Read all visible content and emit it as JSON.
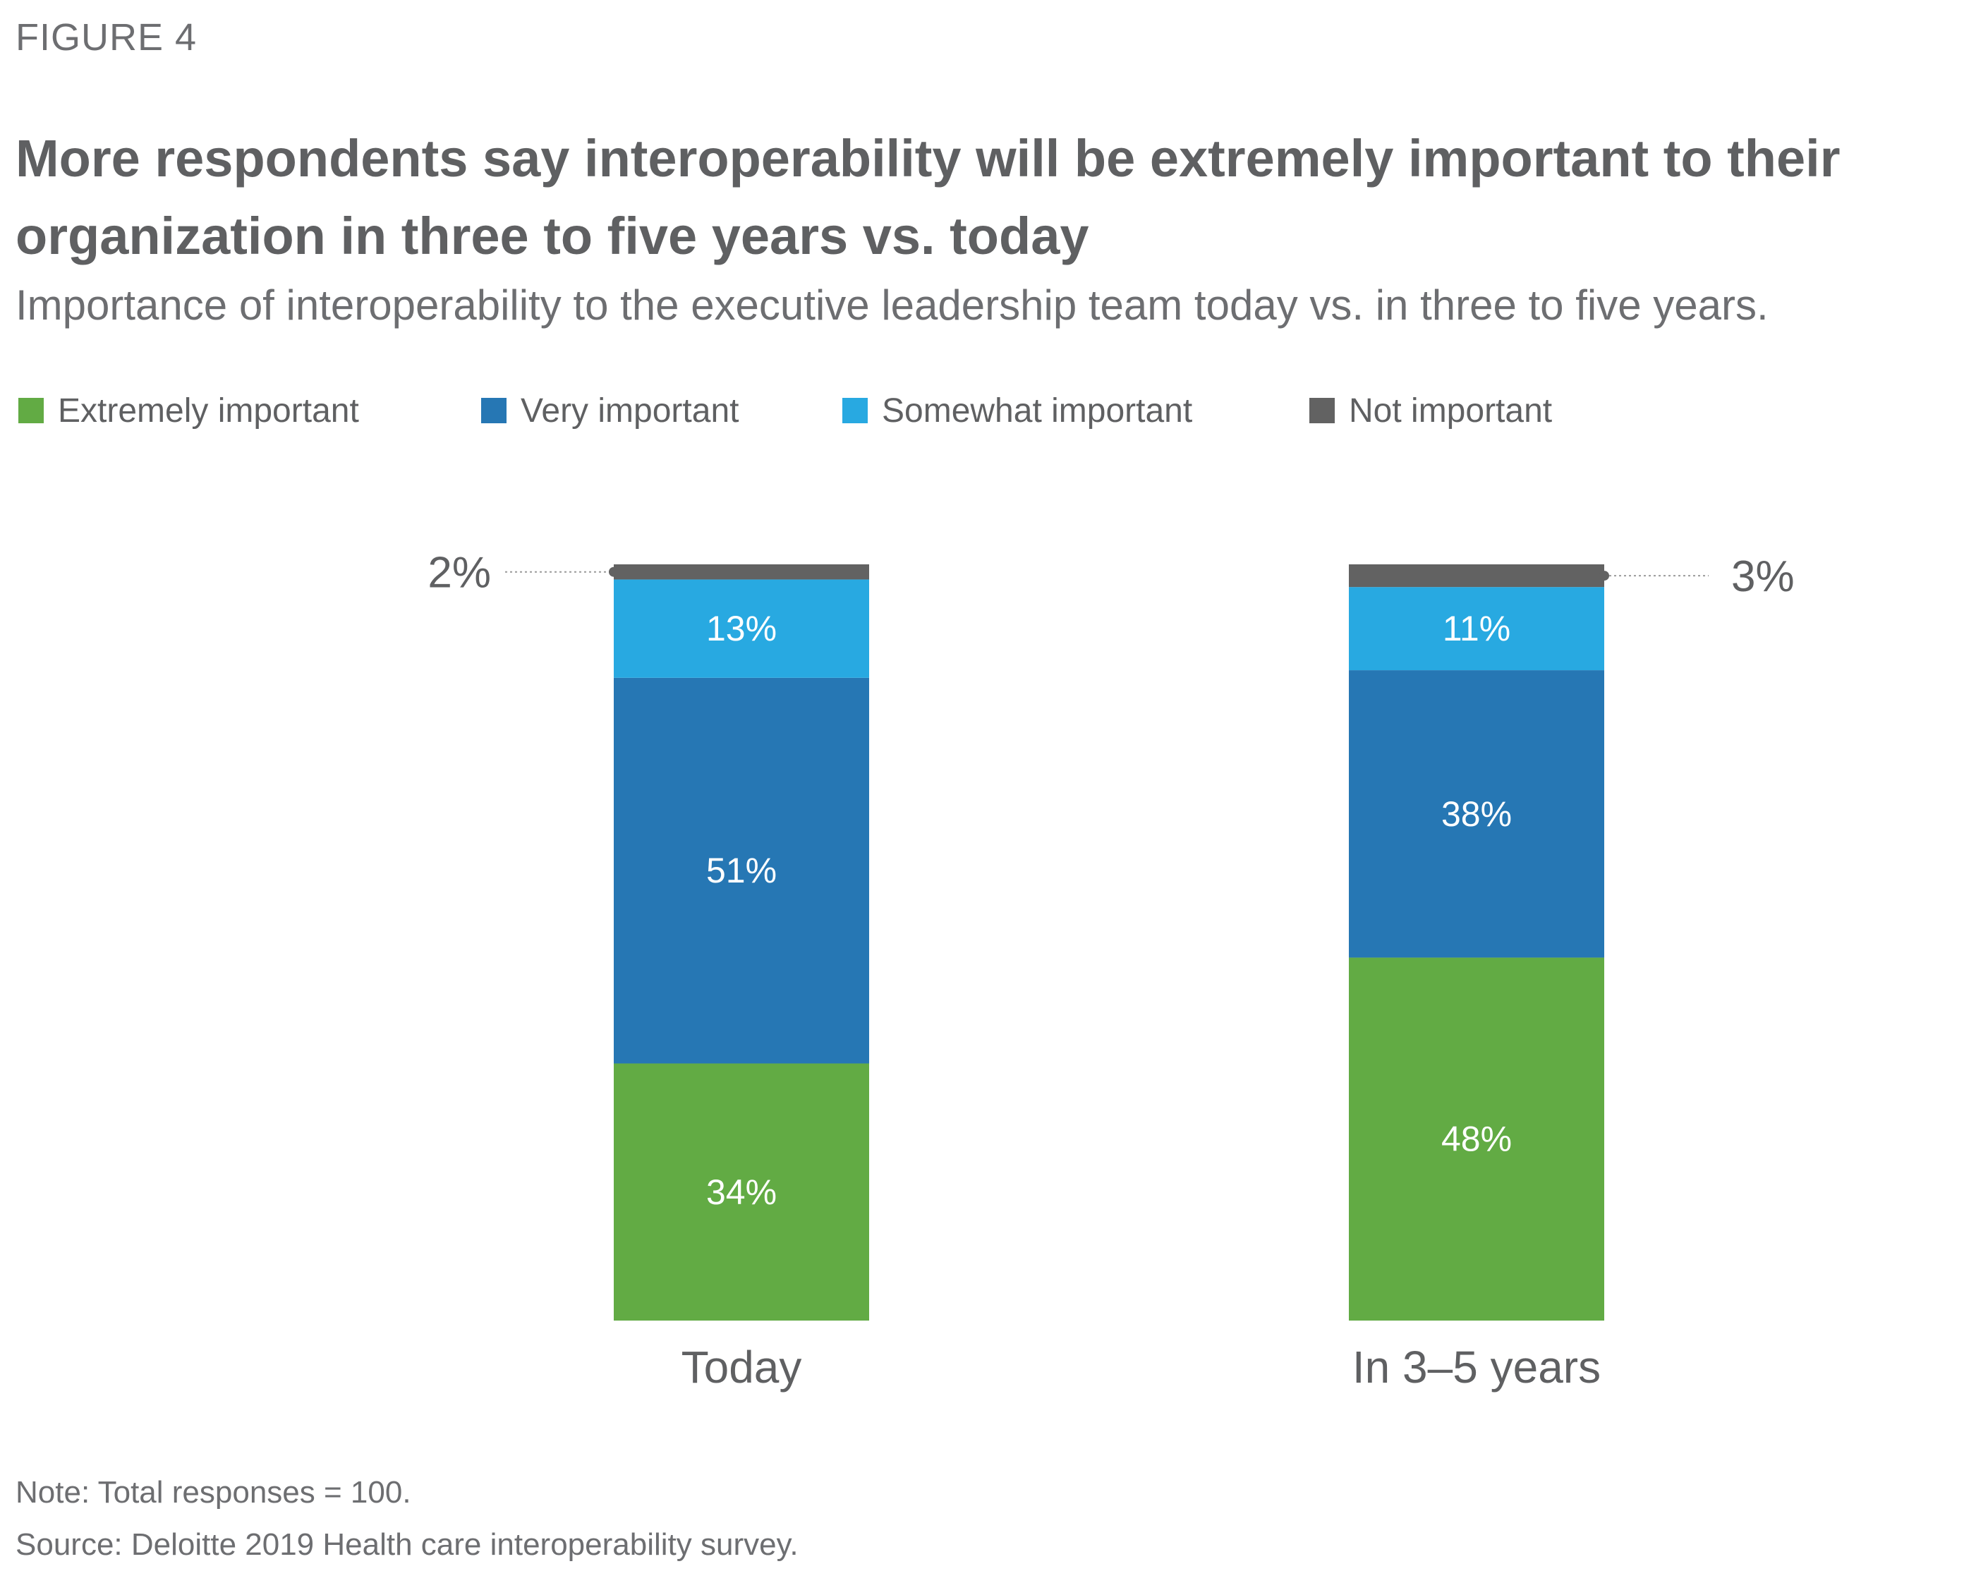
{
  "figure_label": "FIGURE 4",
  "title": "More respondents say interoperability will be extremely important to their organization in three to five years vs. today",
  "subtitle": "Importance of interoperability to the executive leadership team today vs. in three to five years.",
  "legend": [
    {
      "label": "Extremely important",
      "color": "#62ab44"
    },
    {
      "label": "Very important",
      "color": "#2677b4"
    },
    {
      "label": "Somewhat important",
      "color": "#28a9e1"
    },
    {
      "label": "Not important",
      "color": "#626262"
    }
  ],
  "chart_data": {
    "type": "bar",
    "stacked": true,
    "categories": [
      "Today",
      "In 3–5 years"
    ],
    "series": [
      {
        "name": "Extremely important",
        "values": [
          34,
          48
        ],
        "labels": [
          "34%",
          "48%"
        ],
        "color": "#62ab44"
      },
      {
        "name": "Very important",
        "values": [
          51,
          38
        ],
        "labels": [
          "51%",
          "38%"
        ],
        "color": "#2677b4"
      },
      {
        "name": "Somewhat important",
        "values": [
          13,
          11
        ],
        "labels": [
          "13%",
          "11%"
        ],
        "color": "#28a9e1"
      },
      {
        "name": "Not important",
        "values": [
          2,
          3
        ],
        "labels": [
          "2%",
          "3%"
        ],
        "color": "#626262"
      }
    ],
    "ylim": [
      0,
      100
    ],
    "grid": false,
    "legend_position": "top"
  },
  "note": "Note: Total responses = 100.",
  "source": "Source: Deloitte 2019 Health care interoperability survey."
}
